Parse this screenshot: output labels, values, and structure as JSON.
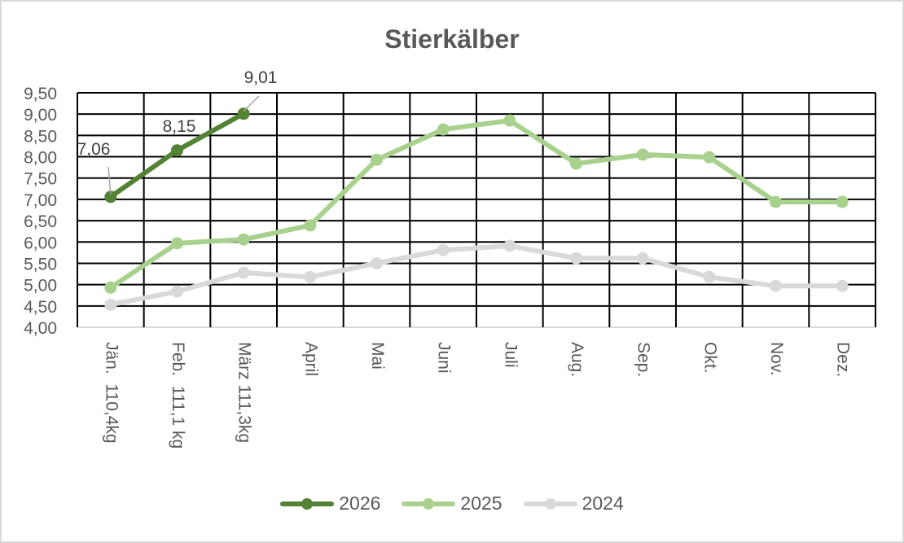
{
  "chart_data": {
    "type": "line",
    "title": "Stierkälber",
    "xlabel": "",
    "ylabel": "",
    "ylim": [
      4.0,
      9.5
    ],
    "y_ticks": [
      "4,00",
      "4,50",
      "5,00",
      "5,50",
      "6,00",
      "6,50",
      "7,00",
      "7,50",
      "8,00",
      "8,50",
      "9,00",
      "9,50"
    ],
    "grid": true,
    "legend_position": "bottom",
    "categories": [
      "Jän.  110,4kg",
      "Feb.  111,1 kg",
      "März 111,3kg",
      "April",
      "Mai",
      "Juni",
      "Juli",
      "Aug.",
      "Sep.",
      "Okt.",
      "Nov.",
      "Dez."
    ],
    "series": [
      {
        "name": "2026",
        "color": "#548235",
        "values": [
          7.06,
          8.15,
          9.01,
          null,
          null,
          null,
          null,
          null,
          null,
          null,
          null,
          null
        ],
        "data_labels": [
          "7,06",
          "8,15",
          "9,01"
        ]
      },
      {
        "name": "2025",
        "color": "#a9d18e",
        "values": [
          4.93,
          5.97,
          6.06,
          6.39,
          7.93,
          8.64,
          8.85,
          7.84,
          8.05,
          7.99,
          6.94,
          6.94
        ]
      },
      {
        "name": "2024",
        "color": "#d9d9d9",
        "values": [
          4.53,
          4.84,
          5.28,
          5.18,
          5.5,
          5.81,
          5.91,
          5.62,
          5.62,
          5.18,
          4.97,
          4.97
        ]
      }
    ]
  }
}
